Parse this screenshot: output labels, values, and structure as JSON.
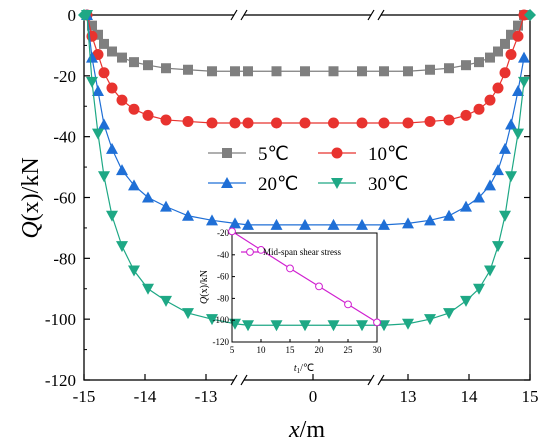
{
  "chart_data": [
    {
      "type": "line",
      "xlabel_main": "x",
      "xlabel_unit": "/m",
      "ylabel_main": "Q",
      "ylabel_arg": "(x)",
      "ylabel_unit": "/kN",
      "ylim": [
        -120,
        0
      ],
      "y_ticks": [
        "0",
        "-20",
        "-40",
        "-60",
        "-80",
        "-100",
        "-120"
      ],
      "y_tick_values": [
        0,
        -20,
        -40,
        -60,
        -80,
        -100,
        -120
      ],
      "x_ticks": [
        "-15",
        "-14",
        "-13",
        "0",
        "13",
        "14",
        "15"
      ],
      "axis_break": true,
      "legend_columns": 2,
      "legend_placement": "center",
      "series": [
        {
          "name": "5℃",
          "color": "#7f7f7f",
          "marker": "square",
          "values": [
            0,
            -3.5,
            -6.5,
            -9.5,
            -12,
            -14,
            -15.5,
            -16.5,
            -17.5,
            -18,
            -18.5,
            -18.5,
            -18.5,
            -18.5,
            -18.5,
            -18.5,
            -18.5,
            -18.5,
            -18.5,
            -18.5,
            -18.5,
            -18.5,
            -18.5,
            -18.5,
            -18.5,
            -18.5,
            -18.5,
            -18.5,
            -18,
            -17.5,
            -16.5,
            -15.5,
            -14,
            -12,
            -9.5,
            -6.5,
            -3.5,
            0
          ]
        },
        {
          "name": "10℃",
          "color": "#e8332f",
          "marker": "circle",
          "values": [
            0,
            -7,
            -13,
            -19,
            -24,
            -28,
            -31,
            -33,
            -34.5,
            -35,
            -35.5,
            -35.5,
            -35.5,
            -35.5,
            -35.5,
            -35.5,
            -35.5,
            -35.5,
            -35.5,
            -35.5,
            -35.5,
            -35.5,
            -35.5,
            -35.5,
            -35.5,
            -35.5,
            -35.5,
            -35.5,
            -35,
            -34.5,
            -33,
            -31,
            -28,
            -24,
            -19,
            -13,
            -7,
            0
          ]
        },
        {
          "name": "20℃",
          "color": "#1f6fd6",
          "marker": "triangle-up",
          "values": [
            0,
            -14,
            -25,
            -36,
            -44,
            -51,
            -56,
            -60,
            -63,
            -66,
            -67.5,
            -68.5,
            -69,
            -69,
            -69,
            -69,
            -69,
            -69,
            -69,
            -69,
            -69,
            -69,
            -69,
            -69,
            -69,
            -69,
            -69,
            -68.5,
            -67.5,
            -66,
            -63,
            -60,
            -56,
            -51,
            -44,
            -36,
            -25,
            -14,
            0
          ]
        },
        {
          "name": "30℃",
          "color": "#1ea885",
          "marker": "triangle-down",
          "values": [
            0,
            -22,
            -39,
            -53,
            -66,
            -76,
            -84,
            -90,
            -94,
            -98,
            -100,
            -101.5,
            -102,
            -102,
            -102,
            -102,
            -102,
            -102,
            -102,
            -102,
            -102,
            -102,
            -102,
            -102,
            -102,
            -102,
            -102,
            -101.5,
            -100,
            -98,
            -94,
            -90,
            -84,
            -76,
            -66,
            -53,
            -39,
            -22,
            0
          ]
        }
      ]
    },
    {
      "type": "line",
      "xlabel_main": "t",
      "xlabel_sub": "1",
      "xlabel_unit": "/℃",
      "ylabel_main": "Q",
      "ylabel_arg": "(x)",
      "ylabel_unit": "/kN",
      "xlim": [
        5,
        30
      ],
      "ylim": [
        -120,
        -20
      ],
      "x_ticks": [
        "5",
        "10",
        "15",
        "20",
        "25",
        "30"
      ],
      "y_ticks": [
        "-120",
        "-100",
        "-80",
        "-60",
        "-40",
        "-20"
      ],
      "series": [
        {
          "name": "Mid-span shear stress",
          "color": "#d020d0",
          "marker": "open-circle",
          "x": [
            5,
            10,
            15,
            20,
            25,
            30
          ],
          "y": [
            -18.5,
            -35.5,
            -52.5,
            -69,
            -85.5,
            -102
          ]
        }
      ]
    }
  ]
}
